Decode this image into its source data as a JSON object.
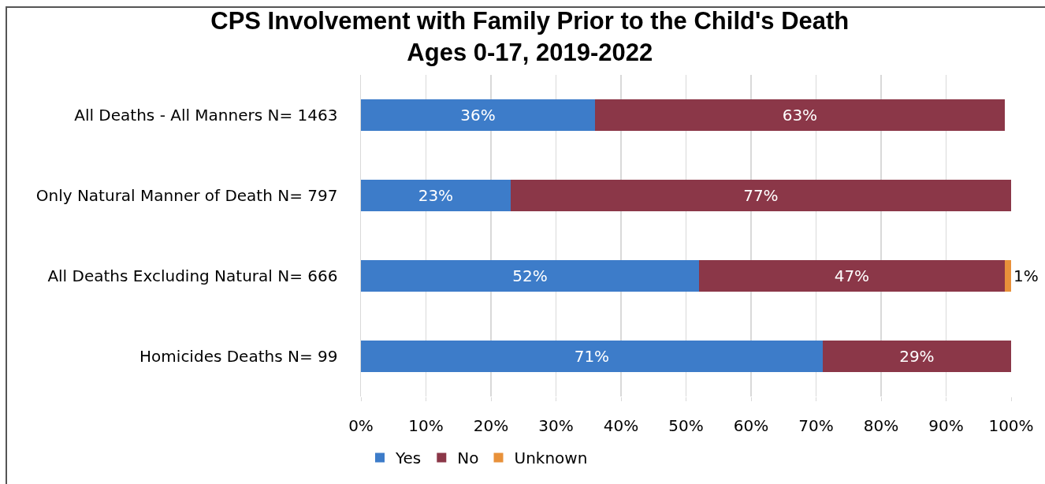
{
  "chart_data": {
    "type": "bar",
    "orientation": "horizontal",
    "stacked": true,
    "title": "CPS Involvement with Family Prior to the Child's Death",
    "subtitle": "Ages 0-17, 2019-2022",
    "categories": [
      "All Deaths - All Manners N= 1463",
      "Only Natural Manner of Death N= 797",
      "All Deaths Excluding Natural N= 666",
      "Homicides Deaths N= 99"
    ],
    "series": [
      {
        "name": "Yes",
        "color": "#3d7cc9",
        "values": [
          36,
          23,
          52,
          71
        ],
        "value_labels": [
          "36%",
          "23%",
          "52%",
          "71%"
        ]
      },
      {
        "name": "No",
        "color": "#8b3748",
        "values": [
          63,
          77,
          47,
          29
        ],
        "value_labels": [
          "63%",
          "77%",
          "47%",
          "29%"
        ]
      },
      {
        "name": "Unknown",
        "color": "#e8913a",
        "values": [
          null,
          null,
          1,
          null
        ],
        "value_labels": [
          null,
          null,
          "1%",
          null
        ]
      }
    ],
    "xlim": [
      0,
      100
    ],
    "xticks": [
      {
        "value": 0,
        "label": "0%"
      },
      {
        "value": 10,
        "label": "10%"
      },
      {
        "value": 20,
        "label": "20%"
      },
      {
        "value": 30,
        "label": "30%"
      },
      {
        "value": 40,
        "label": "40%"
      },
      {
        "value": 50,
        "label": "50%"
      },
      {
        "value": 60,
        "label": "60%"
      },
      {
        "value": 70,
        "label": "70%"
      },
      {
        "value": 80,
        "label": "80%"
      },
      {
        "value": 90,
        "label": "90%"
      },
      {
        "value": 100,
        "label": "100%"
      }
    ],
    "grid": "x",
    "legend": "bottom"
  }
}
